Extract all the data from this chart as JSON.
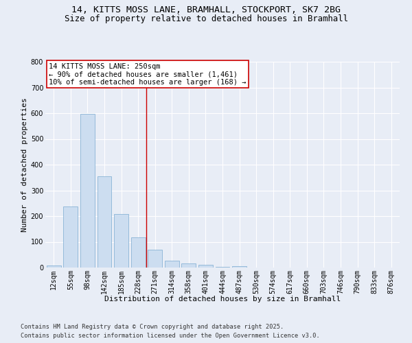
{
  "title_line1": "14, KITTS MOSS LANE, BRAMHALL, STOCKPORT, SK7 2BG",
  "title_line2": "Size of property relative to detached houses in Bramhall",
  "xlabel": "Distribution of detached houses by size in Bramhall",
  "ylabel": "Number of detached properties",
  "categories": [
    "12sqm",
    "55sqm",
    "98sqm",
    "142sqm",
    "185sqm",
    "228sqm",
    "271sqm",
    "314sqm",
    "358sqm",
    "401sqm",
    "444sqm",
    "487sqm",
    "530sqm",
    "574sqm",
    "617sqm",
    "660sqm",
    "703sqm",
    "746sqm",
    "790sqm",
    "833sqm",
    "876sqm"
  ],
  "values": [
    8,
    238,
    598,
    355,
    207,
    117,
    70,
    28,
    17,
    12,
    3,
    5,
    0,
    0,
    0,
    0,
    0,
    0,
    0,
    0,
    0
  ],
  "bar_color": "#ccddf0",
  "bar_edge_color": "#7aaad0",
  "vline_x": 5.5,
  "vline_color": "#cc0000",
  "annotation_line1": "14 KITTS MOSS LANE: 250sqm",
  "annotation_line2": "← 90% of detached houses are smaller (1,461)",
  "annotation_line3": "10% of semi-detached houses are larger (168) →",
  "annotation_box_facecolor": "#ffffff",
  "annotation_box_edgecolor": "#cc0000",
  "ylim": [
    0,
    800
  ],
  "yticks": [
    0,
    100,
    200,
    300,
    400,
    500,
    600,
    700,
    800
  ],
  "bg_color": "#e8edf6",
  "grid_color": "#ffffff",
  "footer_line1": "Contains HM Land Registry data © Crown copyright and database right 2025.",
  "footer_line2": "Contains public sector information licensed under the Open Government Licence v3.0.",
  "title_fontsize": 9.5,
  "subtitle_fontsize": 8.8,
  "axis_label_fontsize": 8,
  "tick_fontsize": 7,
  "annotation_fontsize": 7.5,
  "footer_fontsize": 6.2
}
